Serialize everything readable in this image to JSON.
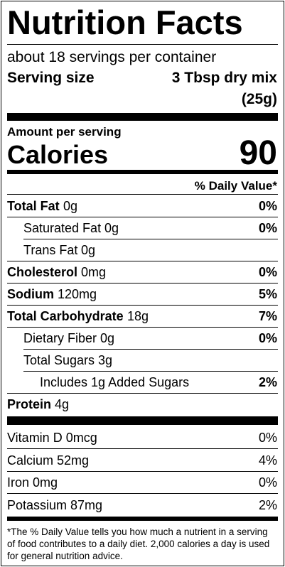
{
  "header": {
    "title": "Nutrition Facts",
    "servings": "about 18 servings per container",
    "serving_size_label": "Serving size",
    "serving_size_value": "3 Tbsp dry mix",
    "serving_size_weight": "(25g)"
  },
  "calories": {
    "amount_label": "Amount per serving",
    "label": "Calories",
    "value": "90"
  },
  "daily_value_header": "% Daily Value*",
  "nutrients": [
    {
      "level": 0,
      "label": "Total Fat",
      "amount": "0g",
      "dv": "0%"
    },
    {
      "level": 1,
      "label": "Saturated Fat",
      "amount": "0g",
      "dv": "0%"
    },
    {
      "level": 1,
      "label": "Trans Fat",
      "amount": "0g"
    },
    {
      "level": 0,
      "label": "Cholesterol",
      "amount": "0mg",
      "dv": "0%"
    },
    {
      "level": 0,
      "label": "Sodium",
      "amount": "120mg",
      "dv": "5%"
    },
    {
      "level": 0,
      "label": "Total Carbohydrate",
      "amount": "18g",
      "dv": "7%"
    },
    {
      "level": 1,
      "label": "Dietary Fiber",
      "amount": "0g",
      "dv": "0%"
    },
    {
      "level": 1,
      "label": "Total Sugars",
      "amount": "3g"
    },
    {
      "level": 2,
      "label": "Includes 1g Added Sugars",
      "dv": "2%"
    },
    {
      "level": 0,
      "label": "Protein",
      "amount": "4g"
    }
  ],
  "vitamins": [
    {
      "label": "Vitamin D 0mcg",
      "dv": "0%"
    },
    {
      "label": "Calcium 52mg",
      "dv": "4%"
    },
    {
      "label": "Iron 0mg",
      "dv": "0%"
    },
    {
      "label": "Potassium 87mg",
      "dv": "2%"
    }
  ],
  "footnote": "*The % Daily Value tells you how much a nutrient in a serving of food contributes to a daily diet. 2,000 calories a day is used for general nutrition advice."
}
